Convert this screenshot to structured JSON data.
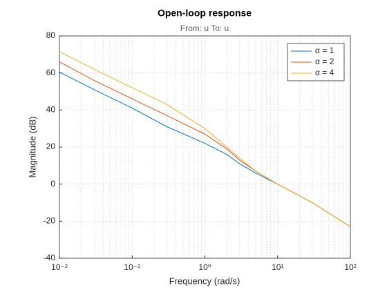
{
  "chart_data": {
    "type": "line",
    "title": "Open-loop response",
    "subtitle": "From: u  To: u",
    "x_label": "Frequency  (rad/s)",
    "y_label": "Magnitude (dB)",
    "x": [
      0.01,
      0.03,
      0.1,
      0.3,
      1,
      2,
      3,
      5,
      10,
      30,
      100
    ],
    "series": [
      {
        "name": "α = 1",
        "color": "#0072BD",
        "values": [
          60.5,
          51,
          41,
          31,
          22,
          16,
          11,
          6,
          0,
          -10,
          -23
        ]
      },
      {
        "name": "α = 2",
        "color": "#D95319",
        "values": [
          66,
          56,
          46,
          37,
          27,
          19,
          13,
          7,
          0,
          -10,
          -23
        ]
      },
      {
        "name": "α = 4",
        "color": "#EDB120",
        "values": [
          71.5,
          62,
          52,
          43,
          30,
          20,
          14,
          7,
          0,
          -10,
          -23
        ]
      }
    ],
    "xlim": [
      0.01,
      100
    ],
    "ylim": [
      -40,
      80
    ],
    "xscale": "log",
    "xticks": [
      {
        "value": 0.01,
        "label": "10⁻²"
      },
      {
        "value": 0.1,
        "label": "10⁻¹"
      },
      {
        "value": 1,
        "label": "10⁰"
      },
      {
        "value": 10,
        "label": "10¹"
      },
      {
        "value": 100,
        "label": "10²"
      }
    ],
    "yticks": [
      -40,
      -20,
      0,
      20,
      40,
      60,
      80
    ],
    "grid": true,
    "legend": "top-right"
  }
}
